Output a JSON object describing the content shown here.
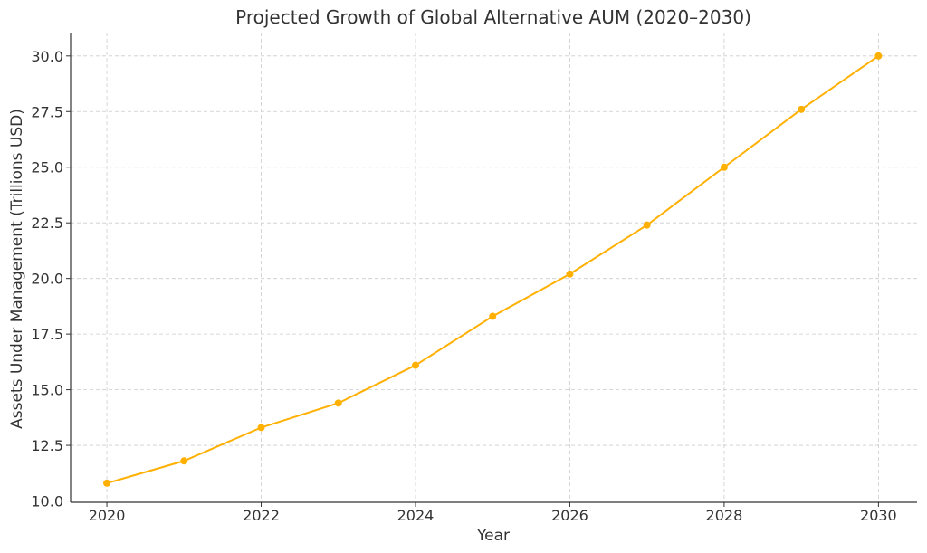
{
  "chart_data": {
    "type": "line",
    "title": "Projected Growth of Global Alternative AUM (2020–2030)",
    "xlabel": "Year",
    "ylabel": "Assets Under Management (Trillions USD)",
    "x": [
      2020,
      2021,
      2022,
      2023,
      2024,
      2025,
      2026,
      2027,
      2028,
      2029,
      2030
    ],
    "series": [
      {
        "values": [
          10.8,
          11.8,
          13.3,
          14.4,
          16.1,
          18.3,
          20.2,
          22.4,
          25.0,
          27.6,
          30.0
        ]
      }
    ],
    "xlim": [
      2019.53,
      2030.5
    ],
    "ylim": [
      9.94,
      31.05
    ],
    "xticks": [
      2020,
      2022,
      2024,
      2026,
      2028,
      2030
    ],
    "yticks": [
      10.0,
      12.5,
      15.0,
      17.5,
      20.0,
      22.5,
      25.0,
      27.5,
      30.0
    ],
    "ytick_labels": [
      "10.0",
      "12.5",
      "15.0",
      "17.5",
      "20.0",
      "22.5",
      "25.0",
      "27.5",
      "30.0"
    ],
    "grid": true,
    "marker": "circle",
    "colors": {
      "line": "#FFB000",
      "grid": "#cccccc",
      "axis": "#333333",
      "text": "#333333"
    }
  }
}
